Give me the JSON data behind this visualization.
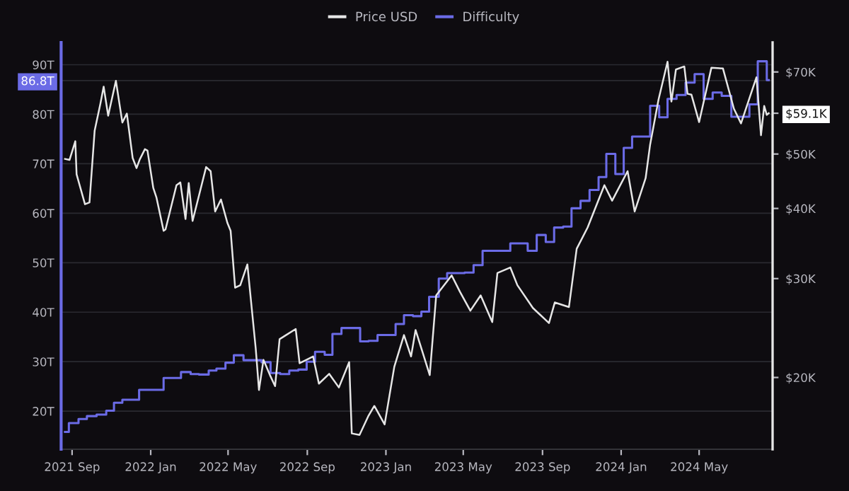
{
  "chart_data": {
    "type": "line",
    "legend": "top",
    "grid": "y",
    "log": "y2",
    "xlim": [
      "2021-08-15",
      "2024-08-23"
    ],
    "xticks": [
      {
        "value": "2021-09-01",
        "label": "2021 Sep"
      },
      {
        "value": "2022-01-01",
        "label": "2022 Jan"
      },
      {
        "value": "2022-05-01",
        "label": "2022 May"
      },
      {
        "value": "2022-09-01",
        "label": "2022 Sep"
      },
      {
        "value": "2023-01-01",
        "label": "2023 Jan"
      },
      {
        "value": "2023-05-01",
        "label": "2023 May"
      },
      {
        "value": "2023-09-01",
        "label": "2023 Sep"
      },
      {
        "value": "2024-01-01",
        "label": "2024 Jan"
      },
      {
        "value": "2024-05-01",
        "label": "2024 May"
      }
    ],
    "ylim": [
      12.3,
      94.5
    ],
    "yticks": [
      {
        "value": 20,
        "label": "20T"
      },
      {
        "value": 30,
        "label": "30T"
      },
      {
        "value": 40,
        "label": "40T"
      },
      {
        "value": 50,
        "label": "50T"
      },
      {
        "value": 60,
        "label": "60T"
      },
      {
        "value": 70,
        "label": "70T"
      },
      {
        "value": 80,
        "label": "80T"
      },
      {
        "value": 86.8,
        "label": "86.8T"
      },
      {
        "value": 90,
        "label": "90T"
      }
    ],
    "y2lim": [
      14900,
      79000
    ],
    "y2ticks": [
      {
        "value": 20000,
        "label": "$20K"
      },
      {
        "value": 30000,
        "label": "$30K"
      },
      {
        "value": 40000,
        "label": "$40K"
      },
      {
        "value": 50000,
        "label": "$50K"
      },
      {
        "value": 59100,
        "label": "$59.1K"
      },
      {
        "value": 70000,
        "label": "$70K"
      }
    ],
    "series": [
      {
        "name": "Price USD",
        "axis": "y2",
        "color": "#e6e6e6",
        "x": [
          "2021-08-21",
          "2021-08-28",
          "2021-09-06",
          "2021-09-08",
          "2021-09-21",
          "2021-09-28",
          "2021-10-06",
          "2021-10-15",
          "2021-10-20",
          "2021-10-27",
          "2021-11-08",
          "2021-11-18",
          "2021-11-25",
          "2021-12-04",
          "2021-12-10",
          "2021-12-15",
          "2021-12-23",
          "2021-12-27",
          "2022-01-05",
          "2022-01-10",
          "2022-01-21",
          "2022-01-24",
          "2022-02-10",
          "2022-02-16",
          "2022-02-24",
          "2022-03-01",
          "2022-03-07",
          "2022-03-28",
          "2022-04-04",
          "2022-04-11",
          "2022-04-20",
          "2022-04-30",
          "2022-05-05",
          "2022-05-12",
          "2022-05-20",
          "2022-05-31",
          "2022-06-13",
          "2022-06-18",
          "2022-06-25",
          "2022-07-05",
          "2022-07-13",
          "2022-07-20",
          "2022-07-30",
          "2022-08-14",
          "2022-08-20",
          "2022-09-10",
          "2022-09-19",
          "2022-10-05",
          "2022-10-20",
          "2022-11-05",
          "2022-11-09",
          "2022-11-21",
          "2022-12-05",
          "2022-12-14",
          "2022-12-30",
          "2023-01-14",
          "2023-01-29",
          "2023-02-09",
          "2023-02-16",
          "2023-03-10",
          "2023-03-20",
          "2023-04-13",
          "2023-04-26",
          "2023-05-12",
          "2023-05-28",
          "2023-06-15",
          "2023-06-23",
          "2023-07-13",
          "2023-07-24",
          "2023-08-17",
          "2023-09-11",
          "2023-09-20",
          "2023-10-12",
          "2023-10-24",
          "2023-11-10",
          "2023-12-06",
          "2023-12-18",
          "2024-01-11",
          "2024-01-22",
          "2024-02-08",
          "2024-02-15",
          "2024-02-28",
          "2024-03-13",
          "2024-03-19",
          "2024-03-26",
          "2024-04-08",
          "2024-04-13",
          "2024-04-19",
          "2024-05-01",
          "2024-05-20",
          "2024-06-07",
          "2024-06-24",
          "2024-07-05",
          "2024-07-29",
          "2024-08-05",
          "2024-08-10",
          "2024-08-14",
          "2024-08-17"
        ],
        "values": [
          49000,
          48800,
          52700,
          46000,
          40700,
          41000,
          55000,
          61500,
          65900,
          58500,
          67500,
          56900,
          59000,
          49200,
          47200,
          48900,
          51000,
          50700,
          43500,
          41800,
          36500,
          36700,
          44000,
          44500,
          38300,
          44400,
          38000,
          47400,
          46600,
          39500,
          41500,
          37700,
          36500,
          28900,
          29200,
          31800,
          22500,
          19000,
          21500,
          20200,
          19300,
          23400,
          23800,
          24400,
          21200,
          21800,
          19500,
          20300,
          19200,
          21300,
          15900,
          15800,
          17100,
          17800,
          16500,
          20900,
          23800,
          21800,
          24300,
          20200,
          28000,
          30400,
          28400,
          26300,
          28000,
          25100,
          30700,
          31400,
          29200,
          26600,
          25000,
          27200,
          26700,
          33900,
          37000,
          44000,
          41300,
          46600,
          39500,
          45300,
          52000,
          62500,
          73000,
          62000,
          70700,
          71600,
          64000,
          63800,
          57000,
          71200,
          71000,
          60200,
          56700,
          68500,
          54000,
          60900,
          58700,
          59100
        ]
      },
      {
        "name": "Difficulty",
        "type": "step",
        "color": "#6b6be6",
        "x": [
          "2021-08-21",
          "2021-08-27",
          "2021-09-11",
          "2021-09-24",
          "2021-10-09",
          "2021-10-24",
          "2021-11-05",
          "2021-11-18",
          "2021-12-14",
          "2022-01-21",
          "2022-02-17",
          "2022-03-04",
          "2022-03-17",
          "2022-04-01",
          "2022-04-13",
          "2022-04-27",
          "2022-05-10",
          "2022-05-25",
          "2022-06-22",
          "2022-07-06",
          "2022-07-21",
          "2022-08-04",
          "2022-08-18",
          "2022-08-31",
          "2022-09-13",
          "2022-09-28",
          "2022-10-10",
          "2022-10-24",
          "2022-11-22",
          "2022-12-05",
          "2022-12-19",
          "2023-01-16",
          "2023-01-29",
          "2023-02-12",
          "2023-02-25",
          "2023-03-09",
          "2023-03-24",
          "2023-04-06",
          "2023-05-03",
          "2023-05-17",
          "2023-05-31",
          "2023-07-13",
          "2023-08-09",
          "2023-08-23",
          "2023-09-06",
          "2023-09-19",
          "2023-10-03",
          "2023-10-16",
          "2023-10-30",
          "2023-11-13",
          "2023-11-27",
          "2023-12-09",
          "2023-12-23",
          "2024-01-05",
          "2024-01-18",
          "2024-02-15",
          "2024-02-29",
          "2024-03-13",
          "2024-03-27",
          "2024-04-10",
          "2024-04-24",
          "2024-05-08",
          "2024-05-22",
          "2024-06-05",
          "2024-06-20",
          "2024-07-18",
          "2024-07-31",
          "2024-08-14",
          "2024-08-17"
        ],
        "values": [
          15.8,
          17.6,
          18.4,
          19.0,
          19.3,
          20.1,
          21.7,
          22.3,
          24.3,
          26.7,
          27.9,
          27.5,
          27.4,
          28.2,
          28.6,
          29.8,
          31.3,
          30.3,
          29.9,
          27.7,
          27.5,
          28.2,
          28.4,
          30.0,
          32.0,
          31.4,
          35.6,
          36.8,
          34.1,
          34.2,
          35.4,
          37.6,
          39.4,
          39.2,
          40.1,
          43.1,
          46.8,
          47.9,
          48.0,
          49.5,
          52.4,
          53.9,
          52.4,
          55.6,
          54.2,
          57.1,
          57.3,
          61.0,
          62.5,
          64.7,
          67.3,
          72.0,
          67.9,
          73.2,
          75.5,
          81.7,
          79.4,
          83.1,
          83.9,
          86.4,
          88.1,
          83.1,
          84.4,
          83.7,
          79.5,
          82.0,
          90.7,
          86.9,
          86.9
        ]
      }
    ]
  }
}
